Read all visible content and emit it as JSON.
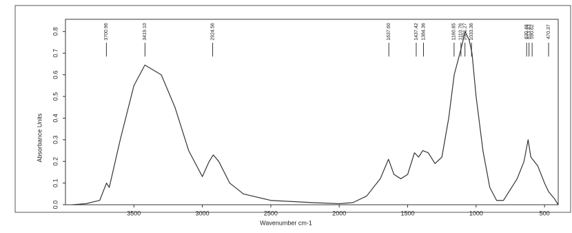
{
  "chart_data": {
    "type": "line",
    "x_label": "Wavenumber cm-1",
    "y_label": "Absorbance Units",
    "x": [
      3950,
      3850,
      3750,
      3700,
      3680,
      3600,
      3500,
      3420,
      3300,
      3200,
      3100,
      3000,
      2950,
      2920,
      2880,
      2800,
      2700,
      2500,
      2200,
      2000,
      1900,
      1800,
      1700,
      1640,
      1600,
      1550,
      1500,
      1450,
      1420,
      1390,
      1350,
      1300,
      1250,
      1200,
      1160,
      1110,
      1080,
      1050,
      1030,
      1000,
      950,
      900,
      850,
      800,
      700,
      650,
      620,
      600,
      550,
      500,
      470,
      430,
      400
    ],
    "series": [
      {
        "color": "#333333",
        "values": [
          0.0,
          0.005,
          0.02,
          0.1,
          0.08,
          0.3,
          0.55,
          0.645,
          0.6,
          0.45,
          0.25,
          0.13,
          0.2,
          0.23,
          0.2,
          0.1,
          0.05,
          0.02,
          0.01,
          0.005,
          0.01,
          0.04,
          0.12,
          0.21,
          0.14,
          0.12,
          0.14,
          0.24,
          0.22,
          0.25,
          0.24,
          0.19,
          0.22,
          0.4,
          0.6,
          0.72,
          0.8,
          0.76,
          0.7,
          0.5,
          0.25,
          0.08,
          0.02,
          0.02,
          0.12,
          0.2,
          0.3,
          0.22,
          0.18,
          0.1,
          0.06,
          0.03,
          0.0
        ]
      }
    ],
    "xlim": [
      4000,
      400
    ],
    "ylim": [
      0,
      0.85
    ],
    "xticks": [
      3500,
      3000,
      2500,
      2000,
      1500,
      1000,
      500
    ],
    "yticks": [
      {
        "value": 0,
        "label": "0.0"
      },
      0.1,
      0.2,
      0.3,
      0.4,
      0.5,
      0.6,
      0.7,
      0.8
    ],
    "peaks": [
      {
        "value": 3700.96,
        "label": "3700.96"
      },
      {
        "value": 3419.1,
        "label": "3419.10"
      },
      {
        "value": 2924.56,
        "label": "2924.56"
      },
      {
        "value": 1637.6,
        "label": "1637.60"
      },
      {
        "value": 1437.42,
        "label": "1437.42"
      },
      {
        "value": 1384.36,
        "label": "1384.36"
      },
      {
        "value": 1160.85,
        "label": "1160.85"
      },
      {
        "value": 1110.76,
        "label": "1110.76"
      },
      {
        "value": 1081.27,
        "label": "1081.27"
      },
      {
        "value": 1033.36,
        "label": "1033.36"
      },
      {
        "value": 630.48,
        "label": "630.48"
      },
      {
        "value": 613.43,
        "label": "613.43"
      },
      {
        "value": 590.62,
        "label": "590.62"
      },
      {
        "value": 470.37,
        "label": "470.37"
      }
    ]
  }
}
